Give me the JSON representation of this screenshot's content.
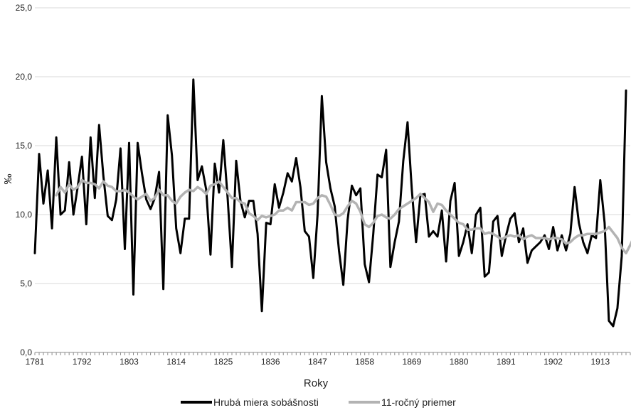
{
  "chart_data": {
    "type": "line",
    "xlabel": "Roky",
    "ylabel": "‰",
    "ylim": [
      0,
      25
    ],
    "y_ticks": [
      "0,0",
      "5,0",
      "10,0",
      "15,0",
      "20,0",
      "25,0"
    ],
    "x_ticks": [
      "1781",
      "1792",
      "1803",
      "1814",
      "1825",
      "1836",
      "1847",
      "1858",
      "1869",
      "1880",
      "1891",
      "1902",
      "1913"
    ],
    "grid": "horizontal",
    "legend_position": "bottom",
    "series": [
      {
        "name": "Hrubá miera sobášnosti",
        "color": "#000000",
        "x_start": 1781,
        "values": [
          7.2,
          14.4,
          10.8,
          13.2,
          9.0,
          15.6,
          10.0,
          10.3,
          13.8,
          10.0,
          12.0,
          14.2,
          9.3,
          15.6,
          11.2,
          16.5,
          12.8,
          9.9,
          9.6,
          11.1,
          14.8,
          7.5,
          15.2,
          4.2,
          15.2,
          13.0,
          11.1,
          10.4,
          11.2,
          13.1,
          4.6,
          17.2,
          14.3,
          9.0,
          7.2,
          9.7,
          9.7,
          19.8,
          12.5,
          13.5,
          11.8,
          7.1,
          13.7,
          11.6,
          15.4,
          11.2,
          6.2,
          13.9,
          11.0,
          9.8,
          11.0,
          11.0,
          8.6,
          3.0,
          9.4,
          9.3,
          12.2,
          10.5,
          11.6,
          13.0,
          12.4,
          14.1,
          12.0,
          8.8,
          8.4,
          5.4,
          10.0,
          18.6,
          13.8,
          11.9,
          10.6,
          7.4,
          4.9,
          9.6,
          12.1,
          11.4,
          11.9,
          6.4,
          5.1,
          8.6,
          12.9,
          12.7,
          14.7,
          6.2,
          8.0,
          9.5,
          13.9,
          16.7,
          11.8,
          8.0,
          11.4,
          11.5,
          8.4,
          8.8,
          8.4,
          10.3,
          6.6,
          11.0,
          12.3,
          7.0,
          8.0,
          9.3,
          7.2,
          10.0,
          10.5,
          5.5,
          5.8,
          9.5,
          9.9,
          7.0,
          8.5,
          9.7,
          10.1,
          8.0,
          9.0,
          6.5,
          7.4,
          7.7,
          8.0,
          8.5,
          7.5,
          9.1,
          7.4,
          8.5,
          7.4,
          8.6,
          12.0,
          9.4,
          8.0,
          7.2,
          8.5,
          8.3,
          12.5,
          9.4,
          2.3,
          1.9,
          3.2,
          7.0,
          19.0
        ]
      },
      {
        "name": "11-ročný priemer",
        "color": "#b3b3b3",
        "x_start": 1786,
        "values": [
          11.4,
          12.0,
          11.6,
          12.2,
          11.8,
          12.0,
          12.5,
          12.3,
          12.3,
          12.2,
          11.9,
          12.4,
          12.1,
          12.0,
          11.7,
          11.7,
          11.8,
          11.6,
          11.3,
          11.1,
          11.3,
          11.5,
          11.0,
          11.2,
          11.8,
          11.4,
          11.4,
          11.0,
          10.8,
          11.3,
          11.6,
          11.8,
          11.7,
          12.0,
          11.8,
          11.5,
          12.1,
          12.2,
          12.4,
          12.0,
          11.6,
          11.2,
          11.2,
          10.9,
          10.8,
          10.1,
          9.9,
          9.6,
          9.9,
          9.8,
          9.9,
          10.0,
          10.3,
          10.3,
          10.5,
          10.3,
          10.9,
          10.9,
          10.9,
          10.7,
          10.8,
          11.2,
          11.4,
          11.3,
          10.7,
          10.0,
          9.9,
          10.1,
          10.6,
          11.0,
          10.8,
          10.2,
          9.3,
          9.1,
          9.4,
          9.9,
          10.0,
          9.8,
          9.7,
          10.0,
          10.4,
          10.6,
          10.8,
          11.0,
          11.2,
          11.5,
          11.2,
          10.9,
          10.2,
          10.8,
          10.7,
          10.3,
          10.0,
          9.7,
          9.4,
          9.3,
          8.9,
          8.9,
          9.0,
          9.0,
          8.6,
          8.7,
          8.6,
          8.4,
          8.2,
          8.4,
          8.5,
          8.4,
          8.5,
          8.2,
          8.4,
          8.5,
          8.3,
          8.3,
          8.3,
          8.2,
          8.3,
          8.3,
          8.2,
          7.9,
          8.0,
          8.3,
          8.5,
          8.5,
          8.6,
          8.6,
          8.6,
          8.7,
          8.8,
          9.1,
          8.7,
          8.3,
          7.6,
          7.2,
          7.8,
          8.5
        ]
      }
    ]
  }
}
